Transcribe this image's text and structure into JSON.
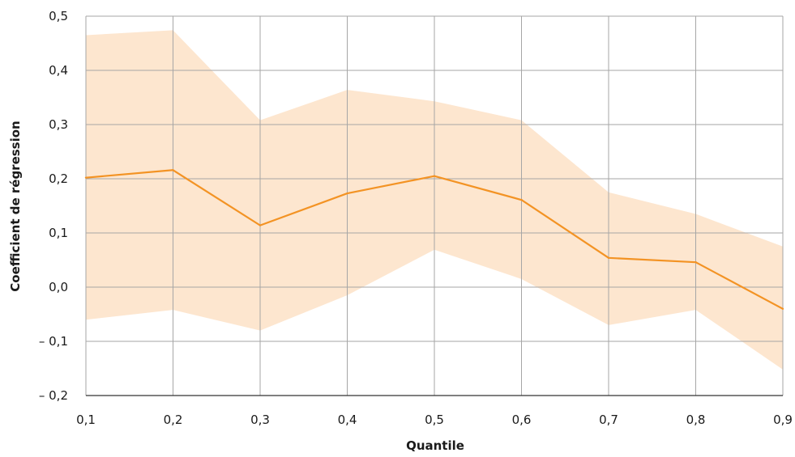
{
  "chart_data": {
    "type": "area",
    "xlabel": "Quantile",
    "ylabel": "Coefficient de régression",
    "x": [
      0.1,
      0.2,
      0.3,
      0.4,
      0.5,
      0.6,
      0.7,
      0.8,
      0.9
    ],
    "x_tick_labels": [
      "0,1",
      "0,2",
      "0,3",
      "0,4",
      "0,5",
      "0,6",
      "0,7",
      "0,8",
      "0,9"
    ],
    "xlim": [
      0.1,
      0.9
    ],
    "ylim": [
      -0.2,
      0.5
    ],
    "y_ticks": [
      -0.2,
      -0.1,
      0.0,
      0.1,
      0.2,
      0.3,
      0.4,
      0.5
    ],
    "y_tick_labels": [
      "– 0,2",
      "– 0,1",
      "0,0",
      "0,1",
      "0,2",
      "0,3",
      "0,4",
      "0,5"
    ],
    "grid": true,
    "series": [
      {
        "type": "line",
        "values": [
          0.202,
          0.216,
          0.114,
          0.173,
          0.205,
          0.161,
          0.054,
          0.046,
          -0.04
        ]
      },
      {
        "type": "band",
        "upper": [
          0.465,
          0.474,
          0.308,
          0.364,
          0.343,
          0.308,
          0.175,
          0.135,
          0.075
        ],
        "lower": [
          -0.06,
          -0.042,
          -0.08,
          -0.015,
          0.069,
          0.015,
          -0.07,
          -0.042,
          -0.152
        ]
      }
    ],
    "colors": {
      "line": "#f39324",
      "band": "#fde6cf",
      "grid": "#a6a6a6",
      "axis": "#333333"
    }
  }
}
